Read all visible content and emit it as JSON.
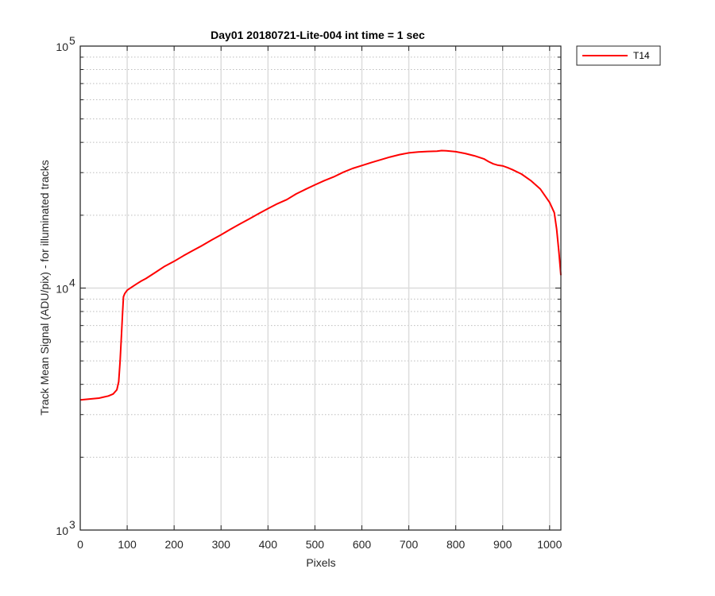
{
  "chart_data": {
    "type": "line",
    "title": "Day01 20180721-Lite-004 int time = 1 sec",
    "xlabel": "Pixels",
    "ylabel": "Track Mean Signal (ADU/pix) - for illuminated tracks",
    "xlim": [
      0,
      1024
    ],
    "ylim": [
      1000,
      100000
    ],
    "yscale": "log",
    "xticks": [
      0,
      100,
      200,
      300,
      400,
      500,
      600,
      700,
      800,
      900,
      1000
    ],
    "xtick_labels": [
      "0",
      "100",
      "200",
      "300",
      "400",
      "500",
      "600",
      "700",
      "800",
      "900",
      "1000"
    ],
    "yticks": [
      {
        "value": 1000,
        "base": "10",
        "exp": "3"
      },
      {
        "value": 10000,
        "base": "10",
        "exp": "4"
      },
      {
        "value": 100000,
        "base": "10",
        "exp": "5"
      }
    ],
    "grid": true,
    "minor_grid": true,
    "legend_position": "outside-top-right",
    "series": [
      {
        "name": "T14",
        "color": "#ff0000",
        "x": [
          0,
          20,
          40,
          60,
          70,
          78,
          82,
          85,
          88,
          90,
          92,
          95,
          100,
          110,
          120,
          130,
          140,
          160,
          180,
          200,
          220,
          240,
          260,
          280,
          300,
          320,
          340,
          360,
          380,
          400,
          420,
          440,
          460,
          480,
          500,
          520,
          540,
          560,
          580,
          600,
          620,
          640,
          660,
          680,
          700,
          720,
          740,
          760,
          770,
          780,
          800,
          820,
          840,
          860,
          870,
          880,
          890,
          900,
          910,
          920,
          940,
          960,
          980,
          1000,
          1010,
          1015,
          1020,
          1024
        ],
        "y": [
          3450,
          3480,
          3510,
          3580,
          3650,
          3800,
          4100,
          5000,
          6500,
          7800,
          9200,
          9500,
          9800,
          10100,
          10400,
          10700,
          10950,
          11600,
          12300,
          12900,
          13600,
          14300,
          15000,
          15800,
          16600,
          17500,
          18400,
          19300,
          20300,
          21300,
          22300,
          23200,
          24500,
          25600,
          26700,
          27800,
          28800,
          30100,
          31200,
          32100,
          33000,
          33900,
          34800,
          35600,
          36200,
          36500,
          36700,
          36800,
          37000,
          36900,
          36600,
          36000,
          35200,
          34200,
          33300,
          32600,
          32200,
          32000,
          31500,
          30900,
          29600,
          27800,
          25700,
          22600,
          20500,
          17500,
          14000,
          11300
        ]
      }
    ]
  }
}
